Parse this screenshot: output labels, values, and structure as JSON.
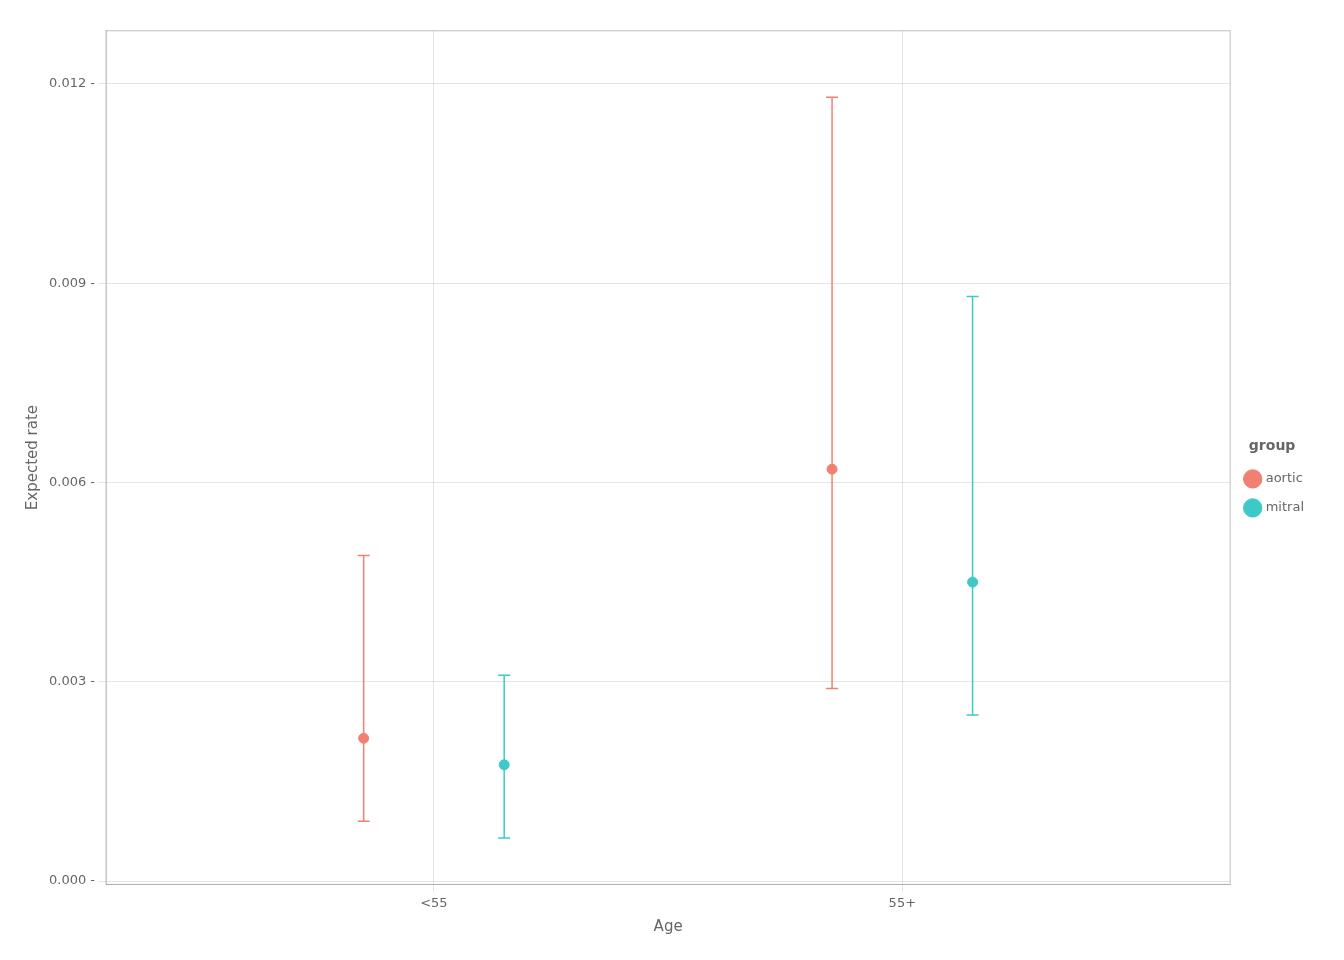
{
  "chart_data": {
    "type": "scatter",
    "xlabel": "Age",
    "ylabel": "Expected rate",
    "categories": [
      "<55",
      "55+"
    ],
    "series": [
      {
        "name": "aortic",
        "color": "#F08070",
        "values": [
          0.00215,
          0.0062
        ],
        "lower": [
          0.0009,
          0.0029
        ],
        "upper": [
          0.0049,
          0.0118
        ]
      },
      {
        "name": "mitral",
        "color": "#3EC9C9",
        "values": [
          0.00175,
          0.0045
        ],
        "lower": [
          0.00065,
          0.0025
        ],
        "upper": [
          0.0031,
          0.0088
        ]
      }
    ],
    "ylim": [
      -5e-05,
      0.0128
    ],
    "yticks": [
      {
        "value": 0,
        "label": "0.000 -"
      },
      {
        "value": 0.003,
        "label": "0.003 -"
      },
      {
        "value": 0.006,
        "label": "0.006 -"
      },
      {
        "value": 0.009,
        "label": "0.009 -"
      },
      {
        "value": 0.012,
        "label": "0.012 -"
      }
    ],
    "grid": true,
    "legend": "right",
    "legend_title": "group"
  }
}
